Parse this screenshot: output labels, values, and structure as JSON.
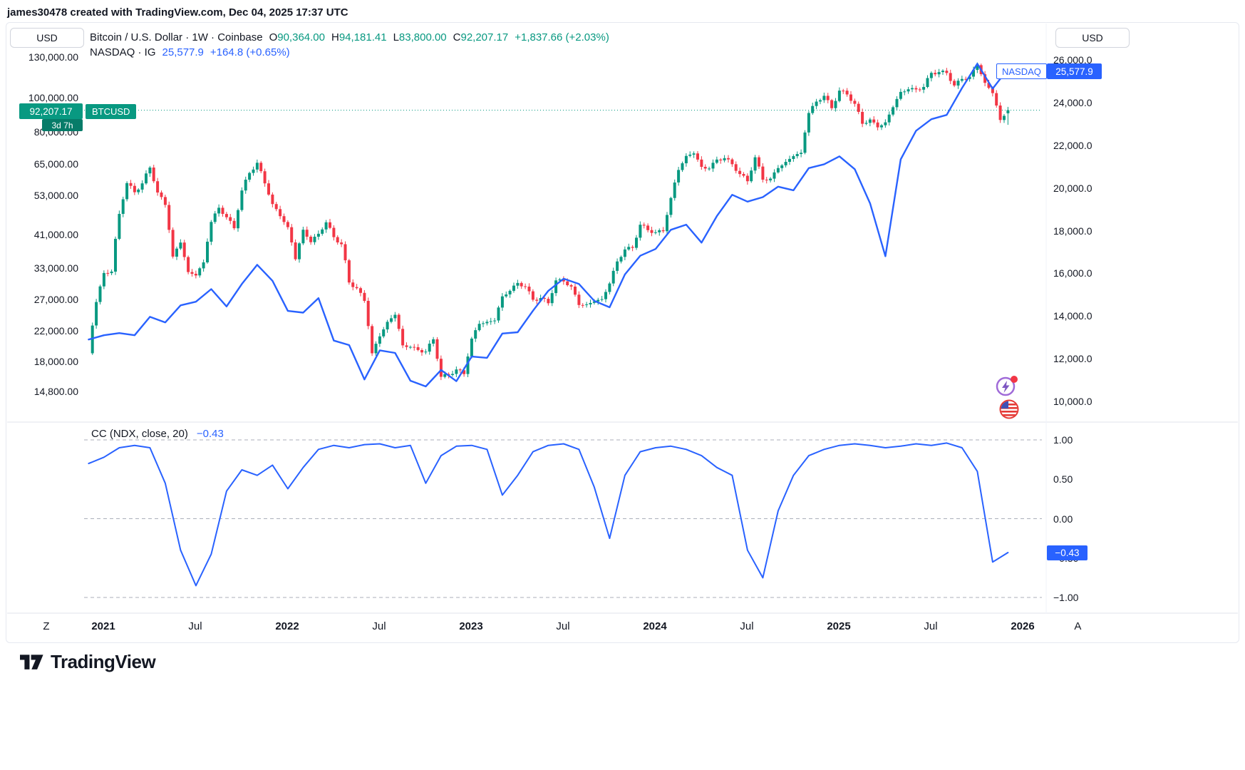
{
  "attribution": "james30478 created with TradingView.com, Dec 04, 2025 17:37 UTC",
  "header": {
    "symbol_line": {
      "title": "Bitcoin / U.S. Dollar · 1W · Coinbase",
      "o_label": "O",
      "o": "90,364.00",
      "h_label": "H",
      "h": "94,181.41",
      "l_label": "L",
      "l": "83,800.00",
      "c_label": "C",
      "c": "92,207.17",
      "change": "+1,837.66 (+2.03%)"
    },
    "compare_line": {
      "title": "NASDAQ · IG",
      "value": "25,577.9",
      "change": "+164.8 (+0.65%)"
    }
  },
  "axes": {
    "left_currency": "USD",
    "right_currency": "USD"
  },
  "tags": {
    "btc_price": "92,207.17",
    "btc_countdown": "3d 7h",
    "btc_symbol": "BTCUSD",
    "nasdaq_label": "NASDAQ",
    "nasdaq_price": "25,577.9",
    "cc_value": "−0.43"
  },
  "indicator": {
    "label": "CC (NDX, close, 20)",
    "value": "−0.43"
  },
  "footer": {
    "brand": "TradingView"
  },
  "colors": {
    "up": "#089981",
    "down": "#F23645",
    "compare": "#2962FF"
  },
  "chart_data": {
    "main_pane": {
      "btc": {
        "type": "candlestick",
        "symbol": "BTCUSD",
        "timeframe": "1W",
        "exchange": "Coinbase",
        "scale": "log",
        "axis": "left",
        "x_start": 2020.92,
        "x_step": 0.0416667,
        "up_color": "#089981",
        "down_color": "#F23645",
        "closes": [
          19000,
          26500,
          32000,
          32300,
          47000,
          57400,
          54100,
          57300,
          63500,
          54000,
          49800,
          35600,
          39000,
          32200,
          31500,
          34300,
          44600,
          48900,
          46000,
          42800,
          54700,
          61300,
          65500,
          57300,
          50100,
          46300,
          43100,
          35000,
          42400,
          39100,
          41300,
          44500,
          40400,
          38600,
          30100,
          29000,
          26700,
          19000,
          21200,
          23300,
          24400,
          20000,
          19800,
          19400,
          19200,
          20800,
          16300,
          16500,
          17100,
          16600,
          20900,
          23000,
          23300,
          23500,
          27500,
          28500,
          30000,
          29300,
          26900,
          27200,
          26300,
          30500,
          30300,
          29300,
          26000,
          26100,
          26600,
          27000,
          29900,
          34500,
          37300,
          37700,
          43800,
          42300,
          41700,
          42000,
          52100,
          62500,
          68500,
          69600,
          63800,
          63100,
          66900,
          67500,
          64900,
          60900,
          58100,
          67900,
          58700,
          59100,
          63300,
          65900,
          68400,
          69900,
          90500,
          97500,
          101200,
          93400,
          104700,
          102100,
          96100,
          84400,
          86800,
          82500,
          85200,
          94000,
          103800,
          105600,
          105500,
          107200,
          117500,
          118100,
          117400,
          108200,
          112900,
          114600,
          123500,
          110100,
          103000,
          86500,
          92207
        ],
        "last_bar": {
          "open": 90364.0,
          "high": 94181.41,
          "low": 83800.0,
          "close": 92207.17,
          "change": 1837.66,
          "change_pct": 2.03
        },
        "axis_labels": [
          {
            "text": "130,000.00",
            "value": 130000
          },
          {
            "text": "100,000.00",
            "value": 100000
          },
          {
            "text": "80,000.00",
            "value": 80000
          },
          {
            "text": "65,000.00",
            "value": 65000
          },
          {
            "text": "53,000.00",
            "value": 53000
          },
          {
            "text": "41,000.00",
            "value": 41000
          },
          {
            "text": "33,000.00",
            "value": 33000
          },
          {
            "text": "27,000.00",
            "value": 27000
          },
          {
            "text": "22,000.00",
            "value": 22000
          },
          {
            "text": "18,000.00",
            "value": 18000
          },
          {
            "text": "14,800.00",
            "value": 14800
          }
        ]
      },
      "nasdaq": {
        "type": "line",
        "symbol": "NASDAQ",
        "exchange": "IG",
        "axis": "right",
        "color": "#2962FF",
        "x_start": 2020.92,
        "x_step": 0.0833333,
        "values": [
          12900,
          13100,
          13200,
          13100,
          13960,
          13700,
          14500,
          14670,
          15260,
          14450,
          15500,
          16400,
          15650,
          14240,
          14160,
          14840,
          12850,
          12640,
          11030,
          12390,
          12270,
          10970,
          10700,
          11470,
          10950,
          12100,
          12040,
          13180,
          13240,
          14250,
          15180,
          15750,
          15500,
          14710,
          14410,
          15950,
          16825,
          17140,
          18040,
          18280,
          17440,
          18680,
          19680,
          19360,
          19570,
          20060,
          19890,
          20930,
          21110,
          21480,
          20880,
          19280,
          16800,
          21340,
          22680,
          23220,
          23420,
          24680,
          25820,
          24650,
          25578
        ],
        "last_value": 25577.9,
        "change": 164.8,
        "change_pct": 0.65,
        "axis_labels": [
          {
            "text": "26,000.0",
            "value": 26000
          },
          {
            "text": "24,000.0",
            "value": 24000
          },
          {
            "text": "22,000.0",
            "value": 22000
          },
          {
            "text": "20,000.0",
            "value": 20000
          },
          {
            "text": "18,000.0",
            "value": 18000
          },
          {
            "text": "16,000.0",
            "value": 16000
          },
          {
            "text": "14,000.0",
            "value": 14000
          },
          {
            "text": "12,000.0",
            "value": 12000
          },
          {
            "text": "10,000.0",
            "value": 10000
          }
        ]
      }
    },
    "indicator_pane": {
      "cc": {
        "type": "line",
        "title": "CC (NDX, close, 20)",
        "color": "#2962FF",
        "x_start": 2020.92,
        "x_step": 0.0833333,
        "ylim": [
          -1.25,
          1.25
        ],
        "gridlines": [
          1.0,
          0.0,
          -1.0
        ],
        "values": [
          0.7,
          0.78,
          0.9,
          0.93,
          0.9,
          0.45,
          -0.4,
          -0.85,
          -0.45,
          0.35,
          0.62,
          0.55,
          0.68,
          0.38,
          0.65,
          0.88,
          0.93,
          0.9,
          0.94,
          0.95,
          0.9,
          0.93,
          0.45,
          0.8,
          0.92,
          0.93,
          0.88,
          0.3,
          0.55,
          0.85,
          0.93,
          0.95,
          0.88,
          0.4,
          -0.25,
          0.55,
          0.85,
          0.9,
          0.92,
          0.88,
          0.8,
          0.65,
          0.55,
          -0.4,
          -0.75,
          0.1,
          0.55,
          0.8,
          0.88,
          0.93,
          0.95,
          0.93,
          0.9,
          0.92,
          0.95,
          0.93,
          0.96,
          0.9,
          0.6,
          -0.55,
          -0.43
        ],
        "last_value": -0.43,
        "axis_labels": [
          {
            "text": "1.00",
            "value": 1.0
          },
          {
            "text": "0.50",
            "value": 0.5
          },
          {
            "text": "0.00",
            "value": 0.0
          },
          {
            "text": "−0.50",
            "value": -0.5
          },
          {
            "text": "−1.00",
            "value": -1.0
          }
        ]
      }
    },
    "x_axis": {
      "labels": [
        {
          "label": "Z",
          "t": 2020.69
        },
        {
          "label": "2021",
          "t": 2021.0
        },
        {
          "label": "Jul",
          "t": 2021.5
        },
        {
          "label": "2022",
          "t": 2022.0
        },
        {
          "label": "Jul",
          "t": 2022.5
        },
        {
          "label": "2023",
          "t": 2023.0
        },
        {
          "label": "Jul",
          "t": 2023.5
        },
        {
          "label": "2024",
          "t": 2024.0
        },
        {
          "label": "Jul",
          "t": 2024.5
        },
        {
          "label": "2025",
          "t": 2025.0
        },
        {
          "label": "Jul",
          "t": 2025.5
        },
        {
          "label": "2026",
          "t": 2026.0
        },
        {
          "label": "A",
          "t": 2026.3
        }
      ]
    }
  }
}
